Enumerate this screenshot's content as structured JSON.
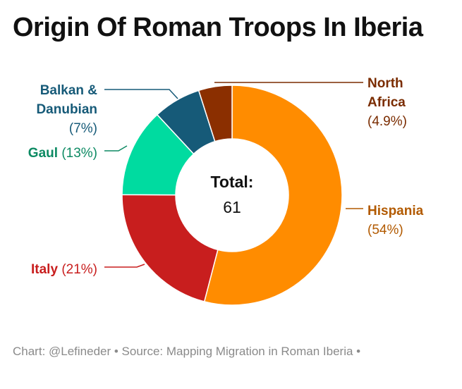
{
  "title": "Origin Of Roman Troops In Iberia",
  "footer": "Chart: @Lefineder • Source: Mapping Migration in Roman Iberia •",
  "chart_data": {
    "type": "pie",
    "donut": true,
    "center_label": "Total:",
    "center_value": "61",
    "slices": [
      {
        "name": "Hispania",
        "percent_label": "(54%)",
        "value": 54,
        "color": "#FF8C00"
      },
      {
        "name": "Italy",
        "percent_label": "(21%)",
        "value": 21,
        "color": "#C81E1E"
      },
      {
        "name": "Gaul",
        "percent_label": "(13%)",
        "value": 13,
        "color": "#00DBA0"
      },
      {
        "name": "Balkan & Danubian",
        "percent_label": "(7%)",
        "value": 7,
        "color": "#165A78"
      },
      {
        "name": "North Africa",
        "percent_label": "(4.9%)",
        "value": 4.9,
        "color": "#8B2F00"
      }
    ],
    "label_colors": {
      "Hispania": "#B25A00",
      "Italy": "#C81E1E",
      "Gaul": "#0D8A63",
      "Balkan & Danubian": "#165A78",
      "North Africa": "#7A2C00"
    }
  }
}
